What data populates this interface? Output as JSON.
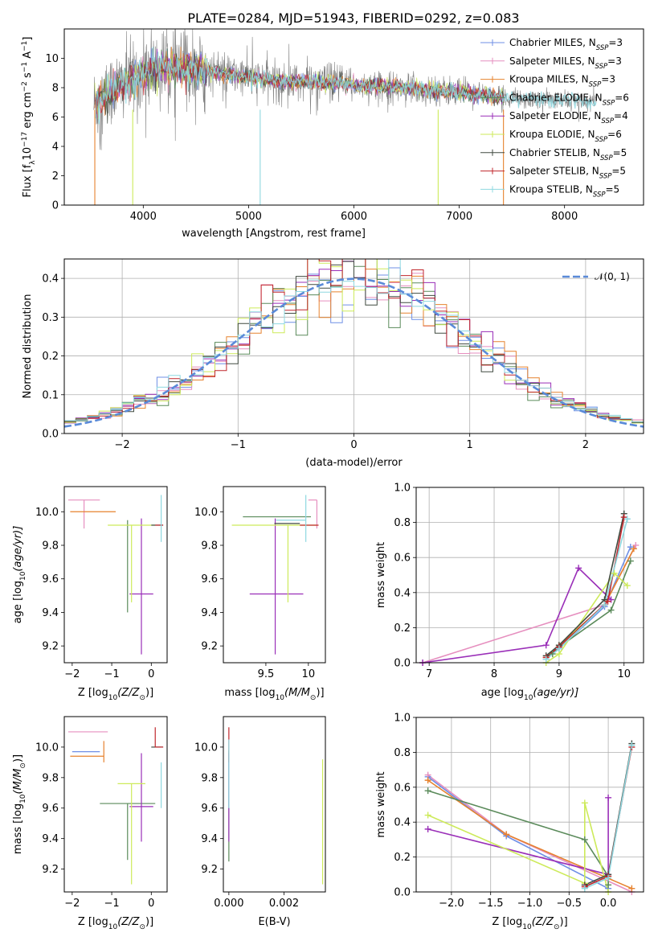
{
  "figure": {
    "title": "PLATE=0284, MJD=51943, FIBERID=0292, z=0.083"
  },
  "models": [
    {
      "name": "Chabrier MILES, N_SSP=3",
      "label_main": "Chabrier MILES, N",
      "label_sub": "SSP",
      "label_end": "=3",
      "color": "#6f8fe6"
    },
    {
      "name": "Salpeter MILES, N_SSP=3",
      "label_main": "Salpeter MILES, N",
      "label_sub": "SSP",
      "label_end": "=3",
      "color": "#e68fbf"
    },
    {
      "name": "Kroupa MILES, N_SSP=3",
      "label_main": "Kroupa MILES, N",
      "label_sub": "SSP",
      "label_end": "=3",
      "color": "#e6822e"
    },
    {
      "name": "Chabrier ELODIE, N_SSP=6",
      "label_main": "Chabrier ELODIE, N",
      "label_sub": "SSP",
      "label_end": "=6",
      "color": "#5a8a5a"
    },
    {
      "name": "Salpeter ELODIE, N_SSP=4",
      "label_main": "Salpeter ELODIE, N",
      "label_sub": "SSP",
      "label_end": "=4",
      "color": "#9a2fb8"
    },
    {
      "name": "Kroupa ELODIE, N_SSP=6",
      "label_main": "Kroupa ELODIE, N",
      "label_sub": "SSP",
      "label_end": "=6",
      "color": "#cdea5a"
    },
    {
      "name": "Chabrier STELIB, N_SSP=5",
      "label_main": "Chabrier STELIB, N",
      "label_sub": "SSP",
      "label_end": "=5",
      "color": "#404a40"
    },
    {
      "name": "Salpeter STELIB, N_SSP=5",
      "label_main": "Salpeter STELIB, N",
      "label_sub": "SSP",
      "label_end": "=5",
      "color": "#c0262c"
    },
    {
      "name": "Kroupa STELIB, N_SSP=5",
      "label_main": "Kroupa STELIB, N",
      "label_sub": "SSP",
      "label_end": "=5",
      "color": "#8ed8e0"
    }
  ],
  "chart_data": [
    {
      "id": "spectrum",
      "type": "line",
      "xlabel": "wavelength [Angstrom, rest frame]",
      "ylabel_main": "Flux [f",
      "ylabel_sub": "λ",
      "ylabel_mid": "10",
      "ylabel_sup1": "−17",
      "ylabel_tail": " erg cm",
      "ylabel_sup2": "−2",
      "ylabel_tail2": " s",
      "ylabel_sup3": "−1",
      "ylabel_tail3": " A",
      "ylabel_sup4": "−1",
      "ylabel_end": "]",
      "xlim": [
        3250,
        8750
      ],
      "ylim": [
        0,
        12
      ],
      "xticks": [
        4000,
        5000,
        6000,
        7000,
        8000
      ],
      "yticks": [
        0,
        2,
        4,
        6,
        8,
        10
      ],
      "grid": false,
      "legend": "upper right",
      "data_color": "#808080",
      "model_color": "#70d8d8",
      "spike_x": [
        3540,
        3900,
        5110,
        6800,
        7420
      ],
      "continuum": [
        [
          3550,
          6.9
        ],
        [
          3700,
          7.8
        ],
        [
          3900,
          8.6
        ],
        [
          4100,
          9.2
        ],
        [
          4400,
          9.4
        ],
        [
          4800,
          8.9
        ],
        [
          5200,
          8.5
        ],
        [
          5600,
          8.4
        ],
        [
          6000,
          8.2
        ],
        [
          6500,
          8.0
        ],
        [
          7000,
          7.7
        ],
        [
          7500,
          7.3
        ],
        [
          8000,
          7.1
        ],
        [
          8300,
          7.0
        ]
      ]
    },
    {
      "id": "residuals",
      "type": "histogram",
      "xlabel": "(data-model)/error",
      "ylabel": "Normed distribution",
      "xlim": [
        -2.5,
        2.5
      ],
      "ylim": [
        0,
        0.45
      ],
      "xticks": [
        -2,
        -1,
        0,
        1,
        2
      ],
      "yticks": [
        0.0,
        0.1,
        0.2,
        0.3,
        0.4
      ],
      "grid": true,
      "legend": "upper right",
      "legend_label": "𝒩(0, 1)",
      "normal_curve_color": "#5a8ad8",
      "bin_width": 0.1
    },
    {
      "id": "age_vs_Z",
      "type": "errorbar",
      "xlabel_main": "Z [log",
      "xlabel_sub": "10",
      "xlabel_end": "(Z/Z",
      "xlabel_sub2": "⊙",
      "xlabel_close": ")]",
      "ylabel_main": "age  [log",
      "ylabel_sub": "10",
      "ylabel_end": "(age/yr)]",
      "xlim": [
        -2.2,
        0.4
      ],
      "ylim": [
        9.1,
        10.15
      ],
      "xticks": [
        -2,
        -1,
        0
      ],
      "yticks": [
        9.2,
        9.4,
        9.6,
        9.8,
        10.0
      ],
      "points": [
        {
          "model": 0,
          "x": -1.3,
          "y": 10.0,
          "xerr": [
            0.0,
            0.0
          ],
          "yerr": [
            0.0,
            0.0
          ]
        },
        {
          "model": 1,
          "x": -1.7,
          "y": 10.07,
          "xerr": [
            0.4,
            0.4
          ],
          "yerr": [
            0.17,
            0.0
          ]
        },
        {
          "model": 2,
          "x": -1.2,
          "y": 10.0,
          "xerr": [
            0.85,
            0.3
          ],
          "yerr": [
            0.0,
            0.0
          ]
        },
        {
          "model": 3,
          "x": -0.6,
          "y": 9.95,
          "xerr": [
            0.0,
            0.0
          ],
          "yerr": [
            0.55,
            0.0
          ]
        },
        {
          "model": 4,
          "x": -0.25,
          "y": 9.51,
          "xerr": [
            0.3,
            0.3
          ],
          "yerr": [
            0.36,
            0.45
          ]
        },
        {
          "model": 5,
          "x": -0.5,
          "y": 9.92,
          "xerr": [
            0.6,
            0.6
          ],
          "yerr": [
            0.46,
            0.0
          ]
        },
        {
          "model": 6,
          "x": 0.0,
          "y": 9.92,
          "xerr": [
            0.0,
            0.3
          ],
          "yerr": [
            0.0,
            0.0
          ]
        },
        {
          "model": 7,
          "x": 0.1,
          "y": 9.92,
          "xerr": [
            0.0,
            0.2
          ],
          "yerr": [
            0.0,
            0.0
          ]
        },
        {
          "model": 8,
          "x": 0.25,
          "y": 9.95,
          "xerr": [
            0.0,
            0.0
          ],
          "yerr": [
            0.13,
            0.15
          ]
        }
      ]
    },
    {
      "id": "age_vs_mass",
      "type": "errorbar",
      "xlabel_main": "mass [log",
      "xlabel_sub": "10",
      "xlabel_end": "(M/M",
      "xlabel_sub2": "⊙",
      "xlabel_close": ")]",
      "xlim": [
        9.0,
        10.2
      ],
      "ylim": [
        9.1,
        10.15
      ],
      "xticks": [
        9.5,
        10.0
      ],
      "yticks": [
        9.2,
        9.4,
        9.6,
        9.8,
        10.0
      ],
      "points": [
        {
          "model": 0,
          "x": 9.97,
          "y": 10.0,
          "xerr": [
            0.0,
            0.0
          ],
          "yerr": [
            0.0,
            0.0
          ]
        },
        {
          "model": 1,
          "x": 10.1,
          "y": 10.07,
          "xerr": [
            0.1,
            0.0
          ],
          "yerr": [
            0.17,
            0.0
          ]
        },
        {
          "model": 2,
          "x": 9.94,
          "y": 10.0,
          "xerr": [
            0.0,
            0.0
          ],
          "yerr": [
            0.0,
            0.0
          ]
        },
        {
          "model": 3,
          "x": 9.63,
          "y": 9.97,
          "xerr": [
            0.4,
            0.4
          ],
          "yerr": [
            0.0,
            0.0
          ]
        },
        {
          "model": 4,
          "x": 9.61,
          "y": 9.51,
          "xerr": [
            0.3,
            0.33
          ],
          "yerr": [
            0.36,
            0.45
          ]
        },
        {
          "model": 5,
          "x": 9.76,
          "y": 9.92,
          "xerr": [
            0.66,
            0.35
          ],
          "yerr": [
            0.46,
            0.0
          ]
        },
        {
          "model": 6,
          "x": 9.9,
          "y": 9.93,
          "xerr": [
            0.3,
            0.0
          ],
          "yerr": [
            0.0,
            0.0
          ]
        },
        {
          "model": 7,
          "x": 10.0,
          "y": 9.92,
          "xerr": [
            0.1,
            0.12
          ],
          "yerr": [
            0.0,
            0.0
          ]
        },
        {
          "model": 8,
          "x": 9.97,
          "y": 9.95,
          "xerr": [
            0.35,
            0.0
          ],
          "yerr": [
            0.13,
            0.15
          ]
        }
      ]
    },
    {
      "id": "massweight_vs_age",
      "type": "line",
      "xlabel_main": "age  [log",
      "xlabel_sub": "10",
      "xlabel_end": "(age/yr)]",
      "ylabel": "mass weight",
      "xlim": [
        6.8,
        10.3
      ],
      "ylim": [
        0,
        1.0
      ],
      "xticks": [
        7,
        8,
        9,
        10
      ],
      "yticks": [
        0.0,
        0.2,
        0.4,
        0.6,
        0.8,
        1.0
      ],
      "grid": true,
      "series": [
        {
          "model": 0,
          "points": [
            [
              8.8,
              0.02
            ],
            [
              9.0,
              0.08
            ],
            [
              9.7,
              0.32
            ],
            [
              10.1,
              0.66
            ]
          ]
        },
        {
          "model": 1,
          "points": [
            [
              6.9,
              0.0
            ],
            [
              9.7,
              0.33
            ],
            [
              10.18,
              0.67
            ]
          ]
        },
        {
          "model": 2,
          "points": [
            [
              8.8,
              0.03
            ],
            [
              9.0,
              0.1
            ],
            [
              9.7,
              0.33
            ],
            [
              10.15,
              0.65
            ]
          ]
        },
        {
          "model": 3,
          "points": [
            [
              8.9,
              0.05
            ],
            [
              9.0,
              0.09
            ],
            [
              9.8,
              0.3
            ],
            [
              10.1,
              0.58
            ]
          ]
        },
        {
          "model": 4,
          "points": [
            [
              6.9,
              0.0
            ],
            [
              8.8,
              0.1
            ],
            [
              9.3,
              0.54
            ],
            [
              9.8,
              0.36
            ]
          ]
        },
        {
          "model": 5,
          "points": [
            [
              8.8,
              0.0
            ],
            [
              9.0,
              0.05
            ],
            [
              9.85,
              0.51
            ],
            [
              10.05,
              0.44
            ]
          ]
        },
        {
          "model": 6,
          "points": [
            [
              8.8,
              0.04
            ],
            [
              9.0,
              0.1
            ],
            [
              9.7,
              0.36
            ],
            [
              10.0,
              0.85
            ]
          ]
        },
        {
          "model": 7,
          "points": [
            [
              8.8,
              0.03
            ],
            [
              9.0,
              0.09
            ],
            [
              9.75,
              0.35
            ],
            [
              10.0,
              0.83
            ]
          ]
        },
        {
          "model": 8,
          "points": [
            [
              8.8,
              0.02
            ],
            [
              9.0,
              0.08
            ],
            [
              9.7,
              0.33
            ],
            [
              10.05,
              0.82
            ]
          ]
        }
      ]
    },
    {
      "id": "mass_vs_Z",
      "type": "errorbar",
      "xlabel_main": "Z [log",
      "xlabel_sub": "10",
      "xlabel_end": "(Z/Z",
      "xlabel_sub2": "⊙",
      "xlabel_close": ")]",
      "ylabel_main": "mass [log",
      "ylabel_sub": "10",
      "ylabel_end": "(M/M",
      "ylabel_sub2": "⊙",
      "ylabel_close": ")]",
      "xlim": [
        -2.2,
        0.4
      ],
      "ylim": [
        9.05,
        10.2
      ],
      "xticks": [
        -2,
        -1,
        0
      ],
      "yticks": [
        9.2,
        9.4,
        9.6,
        9.8,
        10.0
      ],
      "points": [
        {
          "model": 0,
          "x": -1.3,
          "y": 9.97,
          "xerr": [
            0.7,
            0.0
          ],
          "yerr": [
            0.0,
            0.0
          ]
        },
        {
          "model": 1,
          "x": -1.7,
          "y": 10.1,
          "xerr": [
            0.4,
            0.6
          ],
          "yerr": [
            0.0,
            0.0
          ]
        },
        {
          "model": 2,
          "x": -1.2,
          "y": 9.94,
          "xerr": [
            0.85,
            0.0
          ],
          "yerr": [
            0.04,
            0.1
          ]
        },
        {
          "model": 3,
          "x": -0.6,
          "y": 9.63,
          "xerr": [
            0.7,
            0.7
          ],
          "yerr": [
            0.37,
            0.0
          ]
        },
        {
          "model": 4,
          "x": -0.25,
          "y": 9.61,
          "xerr": [
            0.3,
            0.3
          ],
          "yerr": [
            0.23,
            0.35
          ]
        },
        {
          "model": 5,
          "x": -0.5,
          "y": 9.76,
          "xerr": [
            0.35,
            0.35
          ],
          "yerr": [
            0.66,
            0.0
          ]
        },
        {
          "model": 6,
          "x": 0.0,
          "y": 10.0,
          "xerr": [
            0.0,
            0.3
          ],
          "yerr": [
            0.0,
            0.0
          ]
        },
        {
          "model": 7,
          "x": 0.1,
          "y": 10.0,
          "xerr": [
            0.0,
            0.2
          ],
          "yerr": [
            0.0,
            0.13
          ]
        },
        {
          "model": 8,
          "x": 0.25,
          "y": 9.9,
          "xerr": [
            0.0,
            0.0
          ],
          "yerr": [
            0.3,
            0.0
          ]
        }
      ]
    },
    {
      "id": "mass_vs_EBV",
      "type": "errorbar",
      "xlabel": "E(B-V)",
      "xlim": [
        -0.0002,
        0.0035
      ],
      "ylim": [
        9.05,
        10.2
      ],
      "xticks": [
        0.0,
        0.002
      ],
      "xticklabels": [
        "0.000",
        "0.002"
      ],
      "yticks": [
        9.2,
        9.4,
        9.6,
        9.8,
        10.0
      ],
      "points": [
        {
          "model": 3,
          "x": 0.0,
          "y": 9.63,
          "xerr": [
            0.0,
            0.0
          ],
          "yerr": [
            0.38,
            0.35
          ]
        },
        {
          "model": 4,
          "x": 0.0,
          "y": 9.61,
          "xerr": [
            0.0,
            0.0
          ],
          "yerr": [
            0.23,
            0.35
          ]
        },
        {
          "model": 7,
          "x": 0.0,
          "y": 10.0,
          "xerr": [
            0.0,
            0.0
          ],
          "yerr": [
            0.1,
            0.13
          ]
        },
        {
          "model": 8,
          "x": 0.0,
          "y": 9.9,
          "xerr": [
            0.0,
            0.0
          ],
          "yerr": [
            0.3,
            0.15
          ]
        },
        {
          "model": 5,
          "x": 0.0034,
          "y": 9.5,
          "xerr": [
            0.0,
            0.0
          ],
          "yerr": [
            0.4,
            0.42
          ]
        }
      ]
    },
    {
      "id": "massweight_vs_Z",
      "type": "line",
      "xlabel_main": "Z [log",
      "xlabel_sub": "10",
      "xlabel_end": "(Z/Z",
      "xlabel_sub2": "⊙",
      "xlabel_close": ")]",
      "ylabel": "mass weight",
      "xlim": [
        -2.45,
        0.45
      ],
      "ylim": [
        0,
        1.0
      ],
      "xticks": [
        -2.0,
        -1.5,
        -1.0,
        -0.5,
        0.0
      ],
      "xticklabels": [
        "−2.0",
        "−1.5",
        "−1.0",
        "−0.5",
        "0.0"
      ],
      "yticks": [
        0.0,
        0.2,
        0.4,
        0.6,
        0.8,
        1.0
      ],
      "grid": true,
      "series": [
        {
          "model": 0,
          "points": [
            [
              -2.3,
              0.66
            ],
            [
              -1.3,
              0.32
            ],
            [
              0.0,
              0.02
            ]
          ]
        },
        {
          "model": 1,
          "points": [
            [
              -2.3,
              0.67
            ],
            [
              -1.3,
              0.33
            ],
            [
              0.3,
              0.0
            ]
          ]
        },
        {
          "model": 2,
          "points": [
            [
              -2.3,
              0.64
            ],
            [
              -1.3,
              0.33
            ],
            [
              0.3,
              0.02
            ]
          ]
        },
        {
          "model": 3,
          "points": [
            [
              -2.3,
              0.58
            ],
            [
              -0.3,
              0.3
            ],
            [
              0.0,
              0.09
            ],
            [
              0.0,
              0.04
            ]
          ]
        },
        {
          "model": 4,
          "points": [
            [
              -2.3,
              0.36
            ],
            [
              0.0,
              0.1
            ],
            [
              0.0,
              0.54
            ]
          ]
        },
        {
          "model": 5,
          "points": [
            [
              -2.3,
              0.44
            ],
            [
              -0.3,
              0.05
            ],
            [
              -0.3,
              0.51
            ],
            [
              0.0,
              0.0
            ]
          ]
        },
        {
          "model": 6,
          "points": [
            [
              -0.3,
              0.04
            ],
            [
              0.0,
              0.1
            ],
            [
              0.3,
              0.85
            ]
          ]
        },
        {
          "model": 7,
          "points": [
            [
              -0.3,
              0.03
            ],
            [
              0.0,
              0.09
            ],
            [
              0.3,
              0.83
            ]
          ]
        },
        {
          "model": 8,
          "points": [
            [
              -0.3,
              0.02
            ],
            [
              0.0,
              0.08
            ],
            [
              0.3,
              0.84
            ]
          ]
        }
      ]
    }
  ]
}
